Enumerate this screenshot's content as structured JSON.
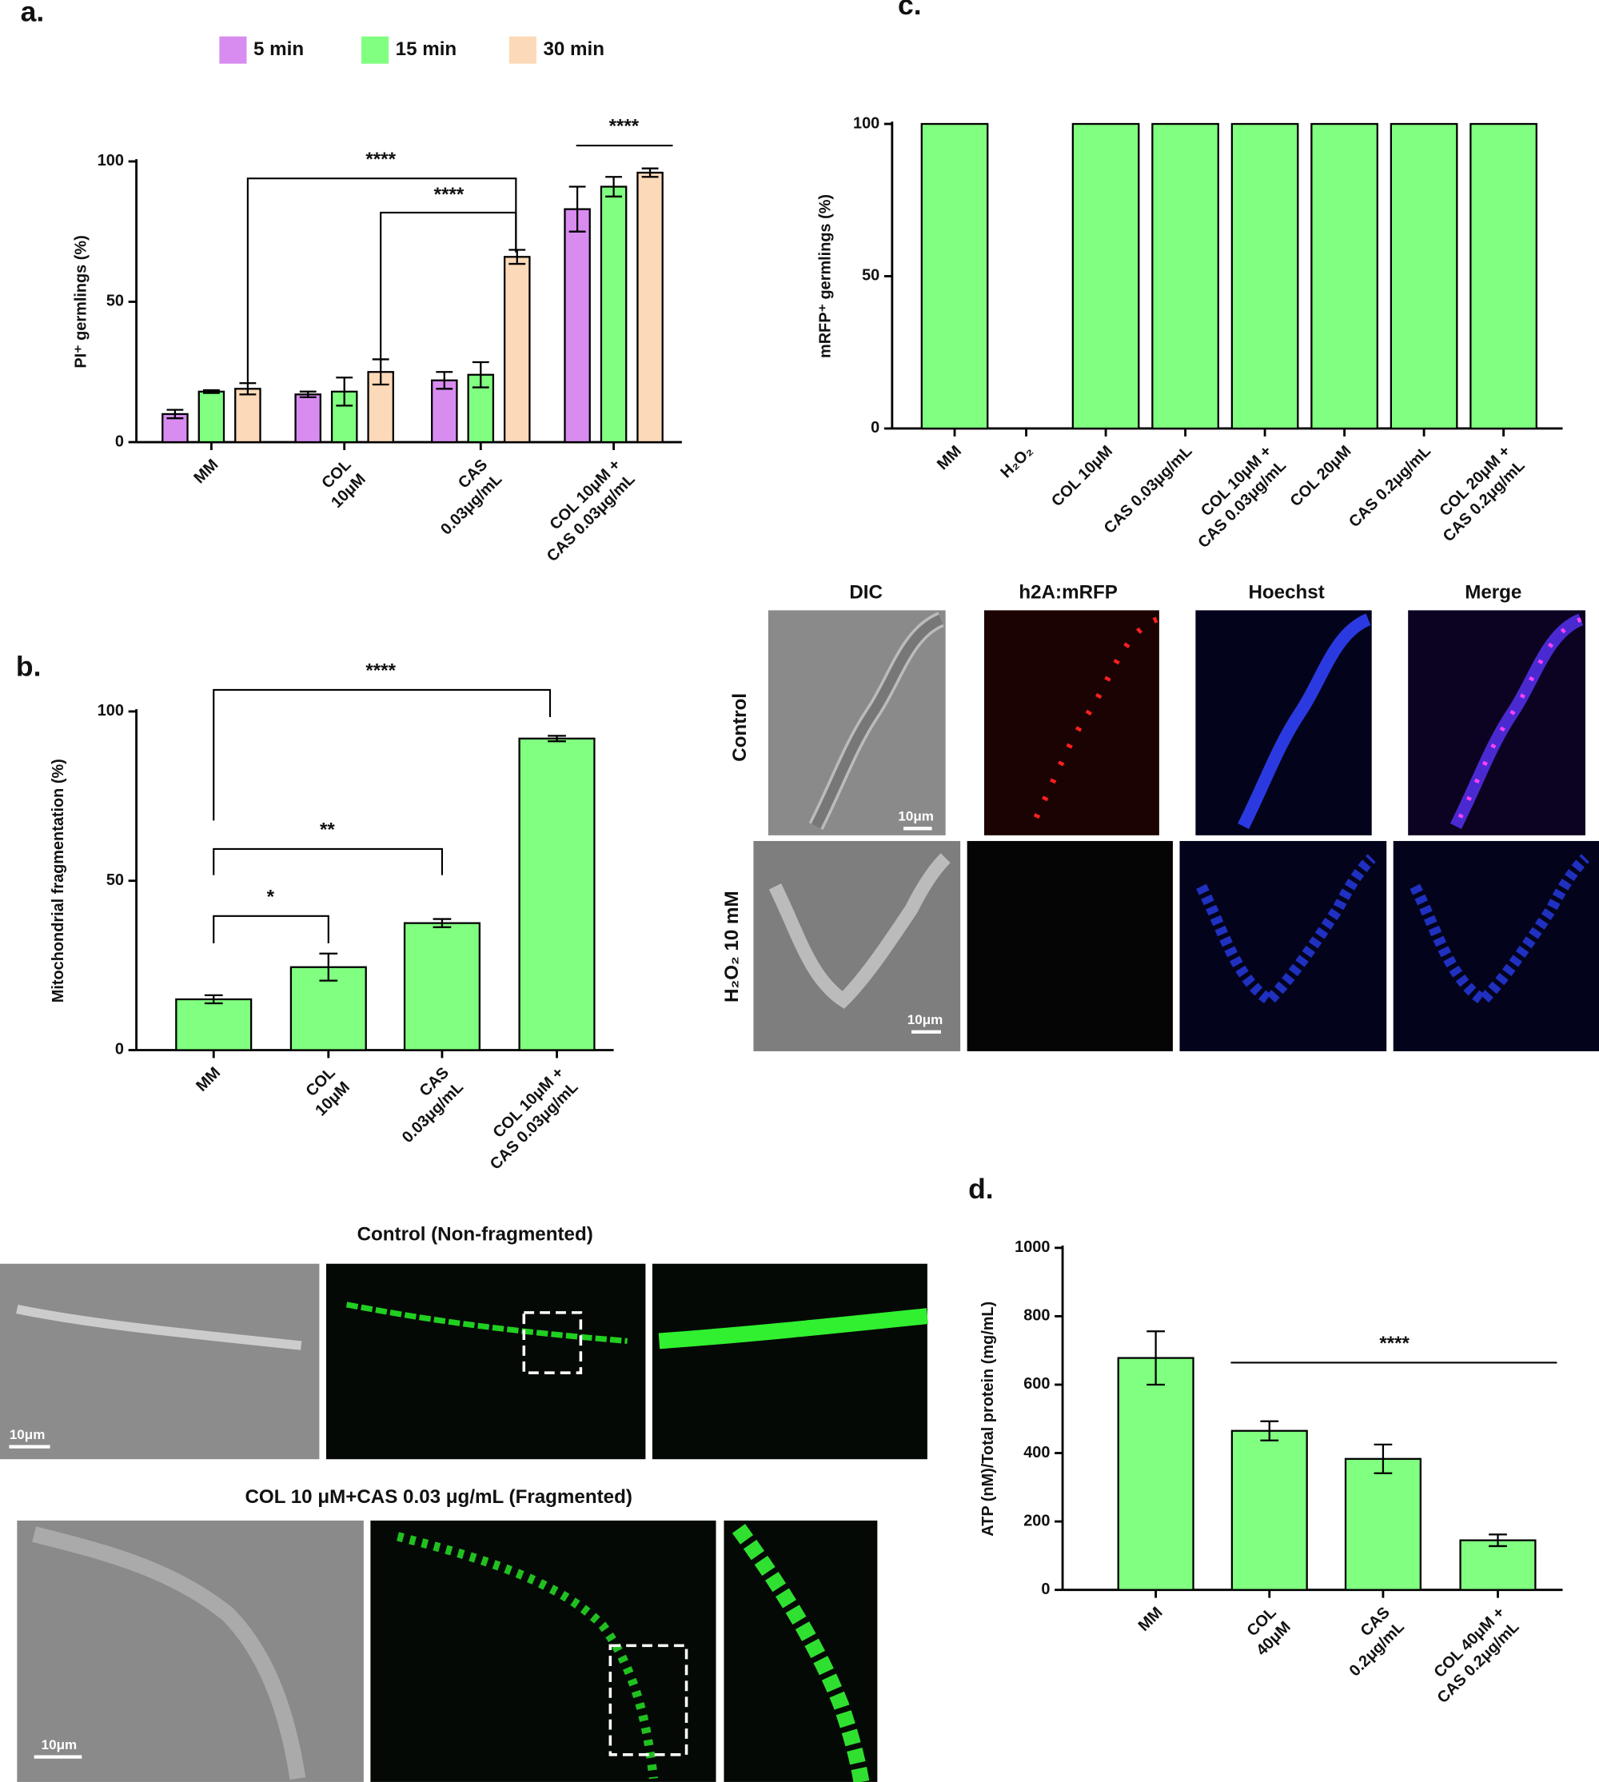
{
  "chart_data": [
    {
      "type": "grouped_bar",
      "panel": "a.",
      "ylabel": "PI⁺ germlings (%)",
      "categories": [
        [
          "MM"
        ],
        [
          "COL",
          "10μM"
        ],
        [
          "CAS",
          "0.03μg/mL"
        ],
        [
          "COL 10μM +",
          "CAS 0.03μg/mL"
        ]
      ],
      "series": [
        {
          "name": "5 min",
          "color": "#d88cf0",
          "values": [
            10,
            17,
            22,
            83
          ],
          "errors": [
            1.5,
            1,
            3,
            8
          ]
        },
        {
          "name": "15 min",
          "color": "#80ff80",
          "values": [
            18,
            18,
            24,
            91
          ],
          "errors": [
            0.5,
            5,
            4.5,
            3.5
          ]
        },
        {
          "name": "30 min",
          "color": "#fcd9b8",
          "values": [
            19,
            25,
            66,
            96
          ],
          "errors": [
            2,
            4.5,
            2.5,
            1.5
          ]
        }
      ],
      "ylim": [
        0,
        100
      ],
      "yticks": [
        0,
        50,
        100
      ],
      "annotations": [
        {
          "text": "****"
        },
        {
          "text": "****"
        },
        {
          "text": "****"
        }
      ]
    },
    {
      "type": "bar",
      "panel": "b.",
      "ylabel": "Mitochondrial fragmentation (%)",
      "color": "#80ff80",
      "categories": [
        [
          "MM"
        ],
        [
          "COL",
          "10μM"
        ],
        [
          "CAS",
          "0.03μg/mL"
        ],
        [
          "COL 10μM +",
          "CAS 0.03μg/mL"
        ]
      ],
      "values": [
        15,
        24.5,
        37.5,
        92
      ],
      "errors": [
        1.2,
        4,
        1.2,
        0.8
      ],
      "ylim": [
        0,
        100
      ],
      "yticks": [
        0,
        50,
        100
      ],
      "annotations": [
        {
          "text": "****"
        },
        {
          "text": "**"
        },
        {
          "text": "*"
        }
      ]
    },
    {
      "type": "bar",
      "panel": "c.",
      "ylabel": "mRFP⁺ germlings (%)",
      "color": "#80ff80",
      "categories": [
        [
          "MM"
        ],
        [
          "H₂O₂"
        ],
        [
          "COL 10μM"
        ],
        [
          "CAS 0.03μg/mL"
        ],
        [
          "COL 10μM +",
          "CAS 0.03μg/mL"
        ],
        [
          "COL 20μM"
        ],
        [
          "CAS 0.2μg/mL"
        ],
        [
          "COL 20μM +",
          "CAS 0.2μg/mL"
        ]
      ],
      "values": [
        100,
        0,
        100,
        100,
        100,
        100,
        100,
        100
      ],
      "ylim": [
        0,
        100
      ],
      "yticks": [
        0,
        50,
        100
      ]
    },
    {
      "type": "bar",
      "panel": "d.",
      "ylabel": "ATP (nM)/Total protein (mg/mL)",
      "color": "#80ff80",
      "categories": [
        [
          "MM"
        ],
        [
          "COL",
          "40μM"
        ],
        [
          "CAS",
          "0.2μg/mL"
        ],
        [
          "COL 40μM +",
          "CAS 0.2μg/mL"
        ]
      ],
      "values": [
        678,
        465,
        383,
        145
      ],
      "errors": [
        78,
        28,
        42,
        17
      ],
      "ylim": [
        0,
        1000
      ],
      "yticks": [
        0,
        200,
        400,
        600,
        800,
        1000
      ],
      "annotations": [
        {
          "text": "****"
        }
      ]
    }
  ],
  "micrographs": {
    "c": {
      "columns": [
        "DIC",
        "h2A:mRFP",
        "Hoechst",
        "Merge"
      ],
      "rows": [
        "Control",
        "H₂O₂ 10 mM"
      ],
      "scale_bars": [
        "10μm",
        "10μm"
      ]
    },
    "b": {
      "titles": [
        "Control (Non-fragmented)",
        "COL 10 μM+CAS 0.03 μg/mL (Fragmented)"
      ],
      "scale_bars": [
        "10μm",
        "10μm"
      ]
    }
  }
}
